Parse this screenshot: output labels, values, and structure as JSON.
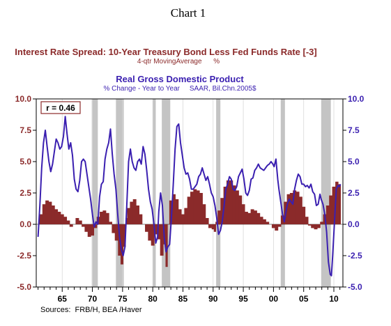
{
  "figure_title": "Chart 1",
  "chart_data": {
    "type": "bar+line",
    "series": [
      {
        "name": "Interest Rate Spread: 10-Year Treasury Bond Less Fed Funds Rate [-3]",
        "subtitle": "4-qtr MovingAverage      %",
        "kind": "bar",
        "color": "#8b2a2a",
        "points": [
          [
            1961.0,
            0.0
          ],
          [
            1961.5,
            0.8
          ],
          [
            1962.0,
            1.6
          ],
          [
            1962.5,
            1.9
          ],
          [
            1963.0,
            1.8
          ],
          [
            1963.5,
            1.5
          ],
          [
            1964.0,
            1.2
          ],
          [
            1964.5,
            1.0
          ],
          [
            1965.0,
            0.8
          ],
          [
            1965.5,
            0.6
          ],
          [
            1966.0,
            0.3
          ],
          [
            1966.5,
            -0.2
          ],
          [
            1967.0,
            0.0
          ],
          [
            1967.5,
            0.5
          ],
          [
            1968.0,
            0.3
          ],
          [
            1968.5,
            -0.2
          ],
          [
            1969.0,
            -0.6
          ],
          [
            1969.5,
            -1.0
          ],
          [
            1970.0,
            -0.9
          ],
          [
            1970.5,
            -0.3
          ],
          [
            1971.0,
            0.6
          ],
          [
            1971.5,
            1.0
          ],
          [
            1972.0,
            1.1
          ],
          [
            1972.5,
            0.9
          ],
          [
            1973.0,
            0.2
          ],
          [
            1973.5,
            -0.7
          ],
          [
            1974.0,
            -1.3
          ],
          [
            1974.5,
            -2.5
          ],
          [
            1974.9,
            -3.2
          ],
          [
            1975.3,
            -1.8
          ],
          [
            1975.7,
            0.5
          ],
          [
            1976.0,
            1.3
          ],
          [
            1976.5,
            1.8
          ],
          [
            1977.0,
            2.0
          ],
          [
            1977.5,
            1.5
          ],
          [
            1978.0,
            0.8
          ],
          [
            1978.5,
            0.0
          ],
          [
            1979.0,
            -0.6
          ],
          [
            1979.5,
            -1.3
          ],
          [
            1980.0,
            -1.7
          ],
          [
            1980.5,
            -0.8
          ],
          [
            1981.0,
            -1.2
          ],
          [
            1981.5,
            -2.5
          ],
          [
            1982.0,
            -1.6
          ],
          [
            1982.3,
            -3.4
          ],
          [
            1982.6,
            0.0
          ],
          [
            1983.0,
            1.9
          ],
          [
            1983.5,
            2.4
          ],
          [
            1984.0,
            2.0
          ],
          [
            1984.5,
            1.2
          ],
          [
            1985.0,
            0.8
          ],
          [
            1985.5,
            1.3
          ],
          [
            1986.0,
            2.2
          ],
          [
            1986.5,
            2.6
          ],
          [
            1987.0,
            2.8
          ],
          [
            1987.5,
            2.7
          ],
          [
            1988.0,
            2.5
          ],
          [
            1988.5,
            1.6
          ],
          [
            1989.0,
            0.5
          ],
          [
            1989.5,
            -0.3
          ],
          [
            1990.0,
            -0.4
          ],
          [
            1990.3,
            -0.6
          ],
          [
            1990.6,
            0.2
          ],
          [
            1991.0,
            1.1
          ],
          [
            1991.5,
            2.1
          ],
          [
            1992.0,
            3.0
          ],
          [
            1992.5,
            3.5
          ],
          [
            1993.0,
            3.5
          ],
          [
            1993.5,
            3.1
          ],
          [
            1994.0,
            2.7
          ],
          [
            1994.5,
            2.3
          ],
          [
            1995.0,
            1.6
          ],
          [
            1995.5,
            1.0
          ],
          [
            1996.0,
            0.9
          ],
          [
            1996.5,
            1.2
          ],
          [
            1997.0,
            1.1
          ],
          [
            1997.5,
            0.9
          ],
          [
            1998.0,
            0.6
          ],
          [
            1998.5,
            0.4
          ],
          [
            1999.0,
            0.2
          ],
          [
            1999.5,
            0.0
          ],
          [
            2000.0,
            -0.3
          ],
          [
            2000.5,
            -0.5
          ],
          [
            2001.0,
            -0.2
          ],
          [
            2001.5,
            0.7
          ],
          [
            2002.0,
            1.8
          ],
          [
            2002.5,
            2.4
          ],
          [
            2003.0,
            2.5
          ],
          [
            2003.5,
            2.7
          ],
          [
            2004.0,
            2.6
          ],
          [
            2004.5,
            2.2
          ],
          [
            2005.0,
            1.4
          ],
          [
            2005.5,
            0.6
          ],
          [
            2006.0,
            -0.1
          ],
          [
            2006.5,
            -0.3
          ],
          [
            2007.0,
            -0.4
          ],
          [
            2007.5,
            -0.3
          ],
          [
            2008.0,
            0.2
          ],
          [
            2008.5,
            0.8
          ],
          [
            2009.0,
            1.5
          ],
          [
            2009.5,
            2.3
          ],
          [
            2010.0,
            3.0
          ],
          [
            2010.5,
            3.4
          ],
          [
            2010.9,
            3.2
          ]
        ]
      },
      {
        "name": "Real Gross Domestic Product",
        "subtitle": "% Change - Year to Year     SAAR, Bil.Chn.2005$",
        "kind": "line",
        "color": "#3a1fb0",
        "points": [
          [
            1961.0,
            -1.0
          ],
          [
            1961.3,
            1.5
          ],
          [
            1961.6,
            4.5
          ],
          [
            1961.9,
            6.5
          ],
          [
            1962.2,
            7.5
          ],
          [
            1962.5,
            6.2
          ],
          [
            1962.8,
            5.0
          ],
          [
            1963.1,
            4.2
          ],
          [
            1963.4,
            4.8
          ],
          [
            1963.7,
            5.8
          ],
          [
            1964.0,
            6.8
          ],
          [
            1964.3,
            6.5
          ],
          [
            1964.6,
            6.0
          ],
          [
            1964.9,
            6.2
          ],
          [
            1965.2,
            7.0
          ],
          [
            1965.5,
            8.6
          ],
          [
            1965.8,
            7.2
          ],
          [
            1966.1,
            6.0
          ],
          [
            1966.4,
            6.5
          ],
          [
            1966.7,
            5.5
          ],
          [
            1967.0,
            3.6
          ],
          [
            1967.3,
            2.8
          ],
          [
            1967.6,
            2.6
          ],
          [
            1967.9,
            3.5
          ],
          [
            1968.2,
            5.0
          ],
          [
            1968.5,
            5.2
          ],
          [
            1968.8,
            5.0
          ],
          [
            1969.1,
            4.0
          ],
          [
            1969.4,
            3.0
          ],
          [
            1969.7,
            2.0
          ],
          [
            1970.0,
            0.8
          ],
          [
            1970.3,
            -0.2
          ],
          [
            1970.6,
            0.2
          ],
          [
            1970.9,
            0.0
          ],
          [
            1971.2,
            2.2
          ],
          [
            1971.5,
            3.2
          ],
          [
            1971.8,
            3.4
          ],
          [
            1972.1,
            5.2
          ],
          [
            1972.4,
            6.0
          ],
          [
            1972.7,
            6.5
          ],
          [
            1973.0,
            7.6
          ],
          [
            1973.3,
            5.6
          ],
          [
            1973.6,
            4.0
          ],
          [
            1973.9,
            2.8
          ],
          [
            1974.2,
            0.8
          ],
          [
            1974.5,
            -1.0
          ],
          [
            1974.8,
            -2.0
          ],
          [
            1975.1,
            -2.5
          ],
          [
            1975.4,
            -1.8
          ],
          [
            1975.7,
            1.5
          ],
          [
            1976.0,
            5.0
          ],
          [
            1976.3,
            6.0
          ],
          [
            1976.6,
            5.0
          ],
          [
            1976.9,
            4.5
          ],
          [
            1977.2,
            4.3
          ],
          [
            1977.5,
            5.0
          ],
          [
            1977.8,
            5.2
          ],
          [
            1978.1,
            4.8
          ],
          [
            1978.4,
            6.2
          ],
          [
            1978.7,
            5.6
          ],
          [
            1979.0,
            4.3
          ],
          [
            1979.3,
            2.8
          ],
          [
            1979.6,
            1.8
          ],
          [
            1979.9,
            1.2
          ],
          [
            1980.2,
            0.0
          ],
          [
            1980.5,
            -1.5
          ],
          [
            1980.8,
            -1.0
          ],
          [
            1981.0,
            1.0
          ],
          [
            1981.3,
            2.5
          ],
          [
            1981.6,
            1.5
          ],
          [
            1981.9,
            -1.0
          ],
          [
            1982.2,
            -2.2
          ],
          [
            1982.5,
            -1.8
          ],
          [
            1982.8,
            -1.6
          ],
          [
            1983.1,
            0.6
          ],
          [
            1983.4,
            3.2
          ],
          [
            1983.7,
            6.0
          ],
          [
            1984.0,
            7.8
          ],
          [
            1984.3,
            8.0
          ],
          [
            1984.6,
            6.5
          ],
          [
            1984.9,
            5.5
          ],
          [
            1985.2,
            4.5
          ],
          [
            1985.5,
            4.0
          ],
          [
            1985.8,
            4.1
          ],
          [
            1986.1,
            3.6
          ],
          [
            1986.4,
            2.8
          ],
          [
            1986.7,
            2.8
          ],
          [
            1987.0,
            3.0
          ],
          [
            1987.3,
            3.2
          ],
          [
            1987.6,
            3.8
          ],
          [
            1987.9,
            4.0
          ],
          [
            1988.2,
            4.5
          ],
          [
            1988.5,
            4.0
          ],
          [
            1988.8,
            3.5
          ],
          [
            1989.1,
            3.8
          ],
          [
            1989.4,
            3.2
          ],
          [
            1989.7,
            2.5
          ],
          [
            1990.0,
            2.2
          ],
          [
            1990.3,
            1.5
          ],
          [
            1990.6,
            0.5
          ],
          [
            1990.9,
            -0.8
          ],
          [
            1991.2,
            -0.5
          ],
          [
            1991.5,
            0.2
          ],
          [
            1991.8,
            1.4
          ],
          [
            1992.1,
            2.8
          ],
          [
            1992.4,
            3.2
          ],
          [
            1992.7,
            3.8
          ],
          [
            1993.0,
            3.6
          ],
          [
            1993.3,
            2.8
          ],
          [
            1993.6,
            2.7
          ],
          [
            1993.9,
            3.0
          ],
          [
            1994.2,
            3.8
          ],
          [
            1994.5,
            4.1
          ],
          [
            1994.8,
            4.4
          ],
          [
            1995.1,
            3.6
          ],
          [
            1995.4,
            2.5
          ],
          [
            1995.7,
            2.3
          ],
          [
            1996.0,
            2.7
          ],
          [
            1996.3,
            3.6
          ],
          [
            1996.6,
            3.7
          ],
          [
            1996.9,
            4.3
          ],
          [
            1997.2,
            4.5
          ],
          [
            1997.5,
            4.8
          ],
          [
            1997.8,
            4.5
          ],
          [
            1998.1,
            4.4
          ],
          [
            1998.4,
            4.3
          ],
          [
            1998.7,
            4.5
          ],
          [
            1999.0,
            4.7
          ],
          [
            1999.3,
            4.8
          ],
          [
            1999.6,
            5.0
          ],
          [
            1999.9,
            4.8
          ],
          [
            2000.1,
            4.6
          ],
          [
            2000.4,
            5.2
          ],
          [
            2000.7,
            3.6
          ],
          [
            2000.9,
            2.8
          ],
          [
            2001.2,
            1.8
          ],
          [
            2001.5,
            0.8
          ],
          [
            2001.8,
            0.2
          ],
          [
            2002.0,
            0.8
          ],
          [
            2002.3,
            1.6
          ],
          [
            2002.6,
            2.0
          ],
          [
            2002.9,
            1.8
          ],
          [
            2003.2,
            1.6
          ],
          [
            2003.5,
            2.8
          ],
          [
            2003.8,
            3.5
          ],
          [
            2004.1,
            4.0
          ],
          [
            2004.4,
            3.8
          ],
          [
            2004.7,
            3.2
          ],
          [
            2005.0,
            3.2
          ],
          [
            2005.3,
            3.0
          ],
          [
            2005.6,
            3.1
          ],
          [
            2005.9,
            2.9
          ],
          [
            2006.2,
            3.2
          ],
          [
            2006.5,
            2.6
          ],
          [
            2006.8,
            2.4
          ],
          [
            2007.1,
            1.5
          ],
          [
            2007.4,
            1.6
          ],
          [
            2007.7,
            2.4
          ],
          [
            2007.9,
            2.0
          ],
          [
            2008.2,
            1.6
          ],
          [
            2008.5,
            0.8
          ],
          [
            2008.8,
            -0.6
          ],
          [
            2009.1,
            -3.0
          ],
          [
            2009.4,
            -4.0
          ],
          [
            2009.6,
            -4.1
          ],
          [
            2009.8,
            -2.5
          ],
          [
            2010.1,
            0.2
          ],
          [
            2010.4,
            2.8
          ],
          [
            2010.7,
            3.1
          ],
          [
            2010.9,
            3.0
          ],
          [
            2011.1,
            3.2
          ]
        ]
      }
    ],
    "xlim": [
      1960.7,
      2011.5
    ],
    "ylim": [
      -5.0,
      10.0
    ],
    "y_ticks": [
      "10.0",
      "7.5",
      "5.0",
      "2.5",
      "0.0",
      "-2.5",
      "-5.0"
    ],
    "x_ticks": [
      "65",
      "70",
      "75",
      "80",
      "85",
      "90",
      "95",
      "00",
      "05",
      "10"
    ],
    "recessions": [
      [
        1969.9,
        1970.9
      ],
      [
        1973.9,
        1975.2
      ],
      [
        1980.0,
        1980.5
      ],
      [
        1981.5,
        1982.9
      ],
      [
        1990.5,
        1991.2
      ],
      [
        2001.2,
        2001.9
      ],
      [
        2007.9,
        2009.5
      ]
    ],
    "annotation": "r = 0.46",
    "source": "Sources:  FRB/H, BEA /Haver",
    "grid": "vertical lines at major x ticks"
  }
}
